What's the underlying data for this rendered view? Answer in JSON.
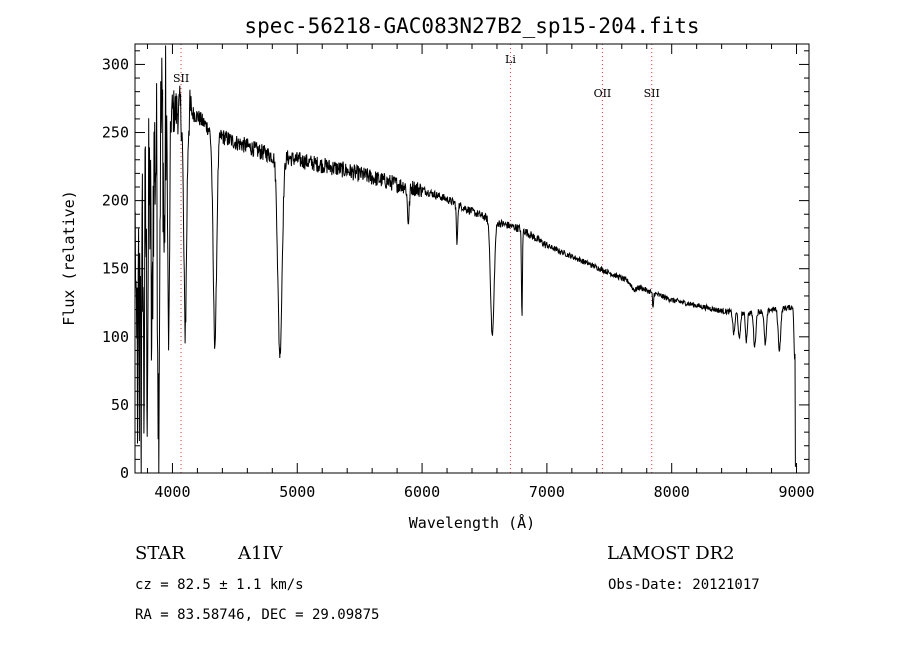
{
  "chart_data": {
    "type": "line",
    "title": "spec-56218-GAC083N27B2_sp15-204.fits",
    "xlabel": "Wavelength (Å)",
    "ylabel": "Flux (relative)",
    "xlim": [
      3700,
      9100
    ],
    "ylim": [
      0,
      315
    ],
    "xticks": [
      4000,
      5000,
      6000,
      7000,
      8000,
      9000
    ],
    "yticks": [
      0,
      50,
      100,
      150,
      200,
      250,
      300
    ],
    "grid": false,
    "line_color": "#000000",
    "marker_color": "#ff3030",
    "spectral_lines": [
      {
        "name": "SII",
        "wavelength": 4069,
        "label_flux": 287
      },
      {
        "name": "Li",
        "wavelength": 6708,
        "label_flux": 301
      },
      {
        "name": "OII",
        "wavelength": 7445,
        "label_flux": 276
      },
      {
        "name": "SII",
        "wavelength": 7840,
        "label_flux": 276
      }
    ],
    "series": [
      {
        "continuum": [
          [
            3700,
            170
          ],
          [
            3800,
            195
          ],
          [
            3900,
            255
          ],
          [
            4000,
            265
          ],
          [
            4100,
            268
          ],
          [
            4200,
            262
          ],
          [
            4300,
            252
          ],
          [
            4400,
            247
          ],
          [
            4500,
            243
          ],
          [
            4600,
            240
          ],
          [
            4700,
            236
          ],
          [
            4800,
            233
          ],
          [
            4900,
            232
          ],
          [
            5000,
            230
          ],
          [
            5200,
            226
          ],
          [
            5400,
            222
          ],
          [
            5600,
            217
          ],
          [
            5800,
            212
          ],
          [
            6000,
            208
          ],
          [
            6200,
            201
          ],
          [
            6400,
            192
          ],
          [
            6600,
            184
          ],
          [
            6800,
            179
          ],
          [
            7000,
            167
          ],
          [
            7200,
            159
          ],
          [
            7400,
            151
          ],
          [
            7600,
            143
          ],
          [
            7800,
            134
          ],
          [
            8000,
            127
          ],
          [
            8200,
            123
          ],
          [
            8400,
            119
          ],
          [
            8600,
            117
          ],
          [
            8800,
            120
          ],
          [
            9000,
            122
          ]
        ],
        "absorption_features": [
          [
            3712,
            120,
            3
          ],
          [
            3722,
            130,
            3
          ],
          [
            3734,
            140,
            3
          ],
          [
            3750,
            145,
            4
          ],
          [
            3771,
            140,
            4
          ],
          [
            3798,
            120,
            5
          ],
          [
            3835,
            130,
            6
          ],
          [
            3889,
            200,
            7
          ],
          [
            3934,
            100,
            5
          ],
          [
            3970,
            170,
            7
          ],
          [
            4102,
            160,
            12
          ],
          [
            4340,
            155,
            14
          ],
          [
            4861,
            145,
            17
          ],
          [
            5890,
            25,
            8
          ],
          [
            6280,
            30,
            5
          ],
          [
            6563,
            85,
            14
          ],
          [
            6800,
            65,
            4
          ],
          [
            7700,
            4,
            20
          ],
          [
            7850,
            12,
            4
          ],
          [
            8498,
            16,
            8
          ],
          [
            8542,
            20,
            8
          ],
          [
            8598,
            20,
            7
          ],
          [
            8665,
            25,
            9
          ],
          [
            8750,
            25,
            9
          ],
          [
            8863,
            30,
            10
          ],
          [
            8985,
            40,
            5
          ]
        ]
      }
    ]
  },
  "info": {
    "object_type": "STAR",
    "subclass": "A1IV",
    "survey": "LAMOST DR2",
    "redshift": "cz = 82.5 ± 1.1 km/s",
    "obs_date": "Obs-Date: 20121017",
    "coordinates": "RA =  83.58746, DEC =  29.09875"
  }
}
